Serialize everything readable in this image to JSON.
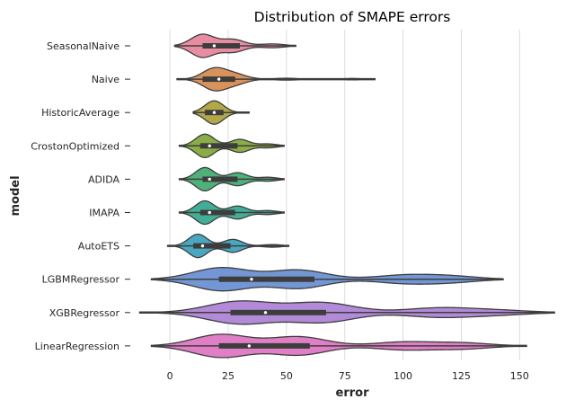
{
  "chart_data": {
    "type": "violin",
    "title": "Distribution of SMAPE errors",
    "xlabel": "error",
    "ylabel": "model",
    "xlim": [
      -12,
      168
    ],
    "x_ticks": [
      0,
      25,
      50,
      75,
      100,
      125,
      150
    ],
    "grid": "vertical",
    "legend": "none",
    "series": [
      {
        "name": "SeasonalNaive",
        "color": "#e88da1",
        "min": 2,
        "max": 54,
        "q1": 14,
        "median": 19,
        "q3": 30,
        "modes": [
          [
            14,
            9
          ],
          [
            27,
            5
          ],
          [
            44,
            1.5
          ]
        ],
        "bandwidth": 5
      },
      {
        "name": "Naive",
        "color": "#d9925a",
        "min": 3,
        "max": 88,
        "q1": 14,
        "median": 21,
        "q3": 28,
        "modes": [
          [
            19,
            9
          ],
          [
            28,
            4
          ],
          [
            50,
            0.8
          ],
          [
            78,
            0.6
          ]
        ],
        "bandwidth": 5
      },
      {
        "name": "HistoricAverage",
        "color": "#b2a847",
        "min": 10,
        "max": 34,
        "q1": 15,
        "median": 19,
        "q3": 23,
        "modes": [
          [
            19,
            10
          ]
        ],
        "bandwidth": 4
      },
      {
        "name": "CrostonOptimized",
        "color": "#8aad45",
        "min": 4,
        "max": 49,
        "q1": 13,
        "median": 17,
        "q3": 29,
        "modes": [
          [
            15,
            9
          ],
          [
            30,
            5
          ],
          [
            42,
            1.5
          ]
        ],
        "bandwidth": 4
      },
      {
        "name": "ADIDA",
        "color": "#4fb17a",
        "min": 4,
        "max": 49,
        "q1": 14,
        "median": 17,
        "q3": 29,
        "modes": [
          [
            15,
            9
          ],
          [
            29,
            5
          ],
          [
            42,
            1.5
          ]
        ],
        "bandwidth": 4
      },
      {
        "name": "IMAPA",
        "color": "#43ae98",
        "min": 4,
        "max": 49,
        "q1": 13,
        "median": 17,
        "q3": 28,
        "modes": [
          [
            15,
            9
          ],
          [
            29,
            5
          ],
          [
            42,
            1.5
          ]
        ],
        "bandwidth": 4
      },
      {
        "name": "AutoETS",
        "color": "#48a8bf",
        "min": -1,
        "max": 51,
        "q1": 10,
        "median": 14,
        "q3": 26,
        "modes": [
          [
            12,
            9
          ],
          [
            27,
            5
          ],
          [
            44,
            1
          ]
        ],
        "bandwidth": 4
      },
      {
        "name": "LGBMRegressor",
        "color": "#7297d4",
        "min": -8,
        "max": 143,
        "q1": 21,
        "median": 35,
        "q3": 62,
        "modes": [
          [
            22,
            3
          ],
          [
            55,
            2.4
          ],
          [
            100,
            1
          ],
          [
            120,
            0.8
          ]
        ],
        "bandwidth": 12
      },
      {
        "name": "XGBRegressor",
        "color": "#b28ad8",
        "min": -13,
        "max": 165,
        "q1": 26,
        "median": 41,
        "q3": 67,
        "modes": [
          [
            30,
            2.5
          ],
          [
            65,
            2.2
          ],
          [
            115,
            1
          ],
          [
            140,
            0.5
          ]
        ],
        "bandwidth": 14
      },
      {
        "name": "LinearRegression",
        "color": "#e07ec6",
        "min": -8,
        "max": 153,
        "q1": 21,
        "median": 34,
        "q3": 60,
        "modes": [
          [
            22,
            3
          ],
          [
            55,
            2.4
          ],
          [
            100,
            1
          ],
          [
            125,
            0.8
          ]
        ],
        "bandwidth": 12
      }
    ]
  }
}
